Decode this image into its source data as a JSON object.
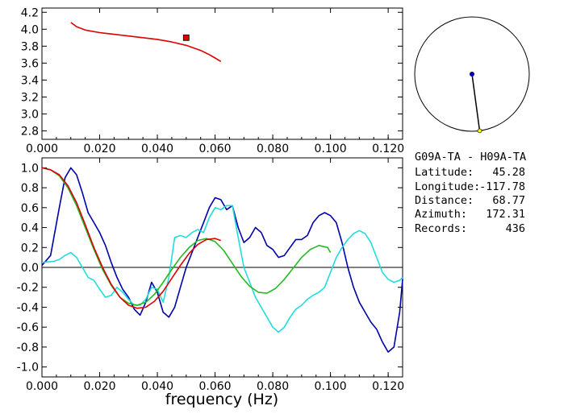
{
  "info": {
    "pair": "G09A-TA  -  H09A-TA",
    "latitude_label": "Latitude:",
    "latitude": "45.28",
    "longitude_label": "Longitude:",
    "longitude": "-117.78",
    "distance_label": "Distance:",
    "distance": "68.77",
    "azimuth_label": "Azimuth:",
    "azimuth": "172.31",
    "records_label": "Records:",
    "records": "436"
  },
  "colors": {
    "red": "#dd0000",
    "green": "#22bb22",
    "navy": "#0000aa",
    "cyan": "#22dddd",
    "yellow": "#ffff00"
  },
  "azimuth_deg": 172.31,
  "chart_data": [
    {
      "type": "line",
      "xlim": [
        0.0,
        0.125
      ],
      "ylim": [
        2.7,
        4.25
      ],
      "xticks": [
        "0.000",
        "0.020",
        "0.040",
        "0.060",
        "0.080",
        "0.100",
        "0.120"
      ],
      "yticks": [
        "2.8",
        "3.0",
        "3.2",
        "3.4",
        "3.6",
        "3.8",
        "4.0",
        "4.2"
      ],
      "series": [
        {
          "color": "#dd0000",
          "x": [
            0.01,
            0.012,
            0.015,
            0.02,
            0.025,
            0.03,
            0.035,
            0.04,
            0.045,
            0.05,
            0.055,
            0.058,
            0.06,
            0.062
          ],
          "y": [
            4.08,
            4.03,
            3.99,
            3.96,
            3.94,
            3.92,
            3.9,
            3.88,
            3.85,
            3.81,
            3.75,
            3.7,
            3.66,
            3.62
          ]
        }
      ],
      "marker": {
        "x": 0.05,
        "y": 3.9,
        "color": "#dd0000"
      }
    },
    {
      "type": "line",
      "xlabel": "frequency (Hz)",
      "xlim": [
        0.0,
        0.125
      ],
      "ylim": [
        -1.1,
        1.1
      ],
      "xticks": [
        "0.000",
        "0.020",
        "0.040",
        "0.060",
        "0.080",
        "0.100",
        "0.120"
      ],
      "yticks": [
        "1.0",
        "0.8",
        "0.6",
        "0.4",
        "0.2",
        "0.0",
        "-0.2",
        "-0.4",
        "-0.6",
        "-0.8",
        "-1.0"
      ],
      "zero_line": true,
      "series": [
        {
          "color": "#0000aa",
          "x": [
            0.0,
            0.003,
            0.006,
            0.008,
            0.01,
            0.012,
            0.014,
            0.016,
            0.018,
            0.02,
            0.022,
            0.024,
            0.026,
            0.028,
            0.03,
            0.032,
            0.034,
            0.036,
            0.038,
            0.04,
            0.042,
            0.044,
            0.046,
            0.048,
            0.05,
            0.052,
            0.054,
            0.056,
            0.058,
            0.06,
            0.062,
            0.064,
            0.066,
            0.068,
            0.07,
            0.072,
            0.074,
            0.076,
            0.078,
            0.08,
            0.082,
            0.084,
            0.086,
            0.088,
            0.09,
            0.092,
            0.094,
            0.096,
            0.098,
            0.1,
            0.102,
            0.104,
            0.106,
            0.108,
            0.11,
            0.112,
            0.114,
            0.116,
            0.118,
            0.12,
            0.122,
            0.124,
            0.125
          ],
          "y": [
            0.02,
            0.12,
            0.6,
            0.9,
            1.0,
            0.93,
            0.75,
            0.55,
            0.45,
            0.35,
            0.22,
            0.05,
            -0.1,
            -0.22,
            -0.3,
            -0.42,
            -0.48,
            -0.35,
            -0.15,
            -0.25,
            -0.45,
            -0.5,
            -0.4,
            -0.2,
            0.0,
            0.15,
            0.3,
            0.45,
            0.6,
            0.7,
            0.68,
            0.58,
            0.62,
            0.4,
            0.25,
            0.3,
            0.4,
            0.35,
            0.22,
            0.18,
            0.1,
            0.12,
            0.2,
            0.28,
            0.28,
            0.32,
            0.45,
            0.52,
            0.55,
            0.52,
            0.45,
            0.25,
            0.0,
            -0.2,
            -0.35,
            -0.45,
            -0.55,
            -0.62,
            -0.75,
            -0.85,
            -0.8,
            -0.45,
            -0.12
          ]
        },
        {
          "color": "#22dddd",
          "x": [
            0.0,
            0.004,
            0.006,
            0.008,
            0.01,
            0.012,
            0.014,
            0.016,
            0.018,
            0.02,
            0.022,
            0.024,
            0.026,
            0.028,
            0.03,
            0.032,
            0.034,
            0.036,
            0.038,
            0.04,
            0.042,
            0.044,
            0.046,
            0.048,
            0.05,
            0.052,
            0.054,
            0.056,
            0.058,
            0.06,
            0.062,
            0.064,
            0.066,
            0.068,
            0.07,
            0.072,
            0.074,
            0.076,
            0.078,
            0.08,
            0.082,
            0.084,
            0.086,
            0.088,
            0.09,
            0.092,
            0.094,
            0.096,
            0.098,
            0.1,
            0.102,
            0.104,
            0.106,
            0.108,
            0.11,
            0.112,
            0.114,
            0.116,
            0.118,
            0.12,
            0.122,
            0.124,
            0.125
          ],
          "y": [
            0.05,
            0.06,
            0.08,
            0.12,
            0.15,
            0.1,
            0.0,
            -0.1,
            -0.13,
            -0.22,
            -0.3,
            -0.28,
            -0.2,
            -0.25,
            -0.32,
            -0.38,
            -0.38,
            -0.32,
            -0.2,
            -0.22,
            -0.35,
            -0.1,
            0.3,
            0.32,
            0.3,
            0.35,
            0.38,
            0.35,
            0.5,
            0.6,
            0.58,
            0.62,
            0.62,
            0.3,
            0.0,
            -0.15,
            -0.3,
            -0.4,
            -0.5,
            -0.6,
            -0.65,
            -0.6,
            -0.5,
            -0.42,
            -0.38,
            -0.32,
            -0.28,
            -0.25,
            -0.2,
            -0.05,
            0.1,
            0.2,
            0.28,
            0.34,
            0.37,
            0.34,
            0.25,
            0.1,
            -0.05,
            -0.12,
            -0.15,
            -0.13,
            -0.1
          ]
        },
        {
          "color": "#22bb22",
          "x": [
            0.0,
            0.003,
            0.006,
            0.009,
            0.012,
            0.015,
            0.018,
            0.021,
            0.024,
            0.027,
            0.03,
            0.033,
            0.036,
            0.039,
            0.042,
            0.045,
            0.048,
            0.051,
            0.054,
            0.057,
            0.06,
            0.063,
            0.066,
            0.069,
            0.072,
            0.075,
            0.078,
            0.081,
            0.084,
            0.087,
            0.09,
            0.093,
            0.096,
            0.099,
            0.1
          ],
          "y": [
            1.0,
            0.98,
            0.92,
            0.8,
            0.62,
            0.4,
            0.18,
            -0.02,
            -0.18,
            -0.3,
            -0.36,
            -0.38,
            -0.35,
            -0.27,
            -0.15,
            -0.02,
            0.1,
            0.2,
            0.27,
            0.29,
            0.26,
            0.17,
            0.04,
            -0.09,
            -0.19,
            -0.25,
            -0.26,
            -0.21,
            -0.12,
            -0.01,
            0.1,
            0.18,
            0.22,
            0.2,
            0.15
          ]
        },
        {
          "color": "#dd0000",
          "x": [
            0.0,
            0.003,
            0.006,
            0.009,
            0.012,
            0.015,
            0.018,
            0.021,
            0.024,
            0.027,
            0.03,
            0.033,
            0.036,
            0.039,
            0.042,
            0.045,
            0.048,
            0.051,
            0.054,
            0.057,
            0.06,
            0.062
          ],
          "y": [
            1.0,
            0.98,
            0.93,
            0.82,
            0.65,
            0.43,
            0.2,
            0.0,
            -0.17,
            -0.3,
            -0.38,
            -0.41,
            -0.4,
            -0.34,
            -0.24,
            -0.11,
            0.02,
            0.14,
            0.23,
            0.28,
            0.29,
            0.27
          ]
        }
      ]
    }
  ]
}
